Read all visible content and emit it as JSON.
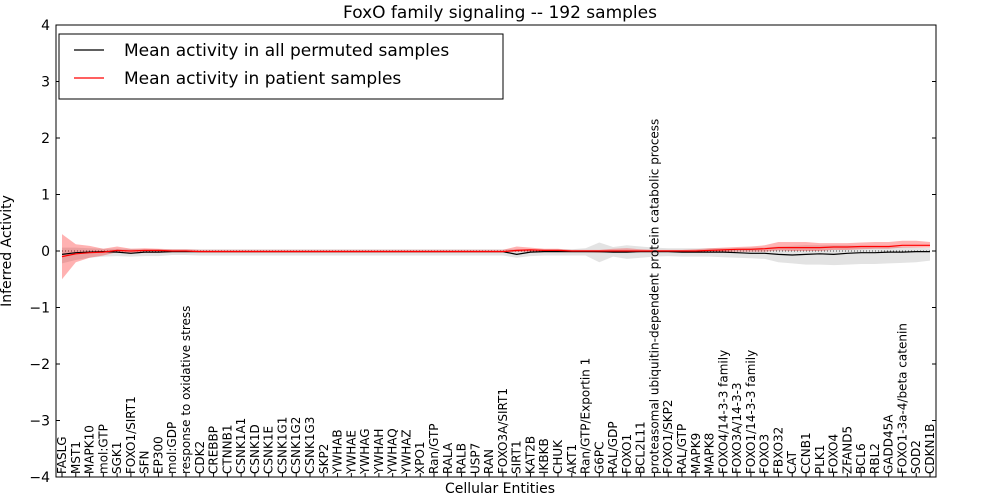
{
  "chart_data": {
    "type": "line",
    "title": "FoxO family signaling -- 192 samples",
    "xlabel": "Cellular Entities",
    "ylabel": "Inferred Activity",
    "ylim": [
      -4,
      4
    ],
    "yticks": [
      -4,
      -3,
      -2,
      -1,
      0,
      1,
      2,
      3,
      4
    ],
    "ytick_labels": [
      "−4",
      "−3",
      "−2",
      "−1",
      "0",
      "1",
      "2",
      "3",
      "4"
    ],
    "legend": {
      "location": "top-left",
      "entries": [
        {
          "label": "Mean activity in all permuted samples",
          "color": "#000000"
        },
        {
          "label": "Mean activity in patient samples",
          "color": "#ff0000"
        }
      ]
    },
    "categories": [
      "FASLG",
      "MST1",
      "MAPK10",
      "mol:GTP",
      "SGK1",
      "FOXO1/SIRT1",
      "SFN",
      "EP300",
      "mol:GDP",
      "response to oxidative stress",
      "CDK2",
      "CREBBP",
      "CTNNB1",
      "CSNK1A1",
      "CSNK1D",
      "CSNK1E",
      "CSNK1G1",
      "CSNK1G2",
      "CSNK1G3",
      "SKP2",
      "YWHAB",
      "YWHAE",
      "YWHAG",
      "YWHAH",
      "YWHAQ",
      "YWHAZ",
      "XPO1",
      "Ran/GTP",
      "RALA",
      "RALB",
      "USP7",
      "RAN",
      "FOXO3A/SIRT1",
      "SIRT1",
      "KAT2B",
      "IKBKB",
      "CHUK",
      "AKT1",
      "Ran/GTP/Exportin 1",
      "G6PC",
      "RAL/GDP",
      "FOXO1",
      "BCL2L11",
      "proteasomal ubiquitin-dependent protein catabolic process",
      "FOXO1/SKP2",
      "RAL/GTP",
      "MAPK9",
      "MAPK8",
      "FOXO4/14-3-3 family",
      "FOXO3A/14-3-3",
      "FOXO1/14-3-3 family",
      "FOXO3",
      "FBXO32",
      "CAT",
      "CCNB1",
      "PLK1",
      "FOXO4",
      "ZFAND5",
      "BCL6",
      "RBL2",
      "GADD45A",
      "FOXO1-3a-4/beta catenin",
      "SOD2",
      "CDKN1B"
    ],
    "series": [
      {
        "name": "Mean activity in all permuted samples",
        "color": "#000000",
        "values": [
          -0.06,
          -0.03,
          -0.02,
          -0.01,
          -0.02,
          -0.04,
          -0.02,
          -0.02,
          -0.01,
          -0.01,
          -0.01,
          -0.01,
          -0.01,
          -0.01,
          -0.01,
          -0.01,
          -0.01,
          -0.01,
          -0.01,
          -0.01,
          -0.01,
          -0.01,
          -0.01,
          -0.01,
          -0.01,
          -0.01,
          -0.01,
          -0.01,
          -0.01,
          -0.01,
          -0.01,
          -0.01,
          -0.01,
          -0.06,
          -0.02,
          -0.01,
          -0.01,
          -0.01,
          -0.01,
          -0.01,
          -0.02,
          -0.02,
          -0.01,
          -0.01,
          -0.01,
          -0.02,
          -0.02,
          -0.02,
          -0.02,
          -0.03,
          -0.04,
          -0.04,
          -0.06,
          -0.07,
          -0.06,
          -0.05,
          -0.06,
          -0.04,
          -0.03,
          -0.03,
          -0.02,
          -0.02,
          -0.01,
          -0.01
        ],
        "band_low": [
          -0.22,
          -0.16,
          -0.12,
          -0.1,
          -0.09,
          -0.1,
          -0.09,
          -0.09,
          -0.07,
          -0.07,
          -0.08,
          -0.08,
          -0.08,
          -0.08,
          -0.08,
          -0.08,
          -0.08,
          -0.08,
          -0.08,
          -0.08,
          -0.08,
          -0.08,
          -0.08,
          -0.08,
          -0.08,
          -0.08,
          -0.08,
          -0.08,
          -0.08,
          -0.08,
          -0.08,
          -0.08,
          -0.08,
          -0.12,
          -0.09,
          -0.08,
          -0.08,
          -0.08,
          -0.08,
          -0.2,
          -0.1,
          -0.14,
          -0.12,
          -0.1,
          -0.09,
          -0.1,
          -0.1,
          -0.1,
          -0.11,
          -0.12,
          -0.13,
          -0.14,
          -0.2,
          -0.22,
          -0.24,
          -0.24,
          -0.25,
          -0.24,
          -0.23,
          -0.23,
          -0.22,
          -0.21,
          -0.2,
          -0.17
        ],
        "band_high": [
          0.06,
          0.06,
          0.05,
          0.04,
          0.04,
          0.04,
          0.03,
          0.03,
          0.03,
          0.03,
          0.03,
          0.03,
          0.03,
          0.03,
          0.03,
          0.03,
          0.03,
          0.03,
          0.03,
          0.03,
          0.03,
          0.03,
          0.03,
          0.03,
          0.03,
          0.03,
          0.03,
          0.03,
          0.03,
          0.03,
          0.03,
          0.03,
          0.03,
          0.03,
          0.03,
          0.03,
          0.03,
          0.03,
          0.05,
          0.15,
          0.07,
          0.1,
          0.08,
          0.06,
          0.05,
          0.05,
          0.05,
          0.05,
          0.05,
          0.05,
          0.06,
          0.06,
          0.08,
          0.09,
          0.1,
          0.1,
          0.1,
          0.1,
          0.09,
          0.09,
          0.08,
          0.07,
          0.06,
          0.05
        ]
      },
      {
        "name": "Mean activity in patient samples",
        "color": "#ff0000",
        "values": [
          -0.1,
          -0.05,
          -0.03,
          -0.02,
          0.01,
          0.0,
          0.01,
          0.01,
          0.0,
          0.0,
          -0.01,
          -0.01,
          -0.01,
          -0.01,
          -0.01,
          -0.01,
          -0.01,
          -0.01,
          -0.01,
          -0.01,
          -0.01,
          -0.01,
          -0.01,
          -0.01,
          -0.01,
          -0.01,
          -0.01,
          -0.01,
          -0.01,
          -0.01,
          -0.01,
          -0.01,
          -0.01,
          0.01,
          0.02,
          0.01,
          0.01,
          0.0,
          0.0,
          0.0,
          0.0,
          0.0,
          0.0,
          0.0,
          0.0,
          0.0,
          0.0,
          0.01,
          0.02,
          0.03,
          0.03,
          0.04,
          0.06,
          0.06,
          0.06,
          0.06,
          0.07,
          0.07,
          0.08,
          0.08,
          0.08,
          0.1,
          0.1,
          0.1
        ],
        "band_low": [
          -0.5,
          -0.2,
          -0.12,
          -0.08,
          -0.02,
          -0.05,
          -0.03,
          -0.03,
          -0.02,
          -0.02,
          -0.02,
          -0.02,
          -0.02,
          -0.02,
          -0.02,
          -0.02,
          -0.02,
          -0.02,
          -0.02,
          -0.02,
          -0.02,
          -0.02,
          -0.02,
          -0.02,
          -0.02,
          -0.02,
          -0.02,
          -0.02,
          -0.02,
          -0.02,
          -0.02,
          -0.02,
          -0.02,
          -0.02,
          -0.01,
          -0.01,
          -0.01,
          -0.02,
          -0.02,
          -0.03,
          -0.02,
          -0.02,
          -0.02,
          -0.02,
          -0.01,
          -0.01,
          -0.01,
          -0.01,
          -0.02,
          -0.01,
          -0.01,
          -0.01,
          0.01,
          0.0,
          0.0,
          0.0,
          0.02,
          0.02,
          0.03,
          0.04,
          0.04,
          0.06,
          0.06,
          0.06
        ],
        "band_high": [
          0.3,
          0.12,
          0.09,
          0.04,
          0.08,
          0.04,
          0.05,
          0.04,
          0.03,
          0.03,
          0.02,
          0.02,
          0.02,
          0.02,
          0.02,
          0.02,
          0.02,
          0.02,
          0.02,
          0.02,
          0.02,
          0.02,
          0.02,
          0.02,
          0.02,
          0.02,
          0.02,
          0.02,
          0.02,
          0.02,
          0.02,
          0.02,
          0.02,
          0.08,
          0.06,
          0.04,
          0.04,
          0.02,
          0.02,
          0.02,
          0.04,
          0.05,
          0.03,
          0.02,
          0.02,
          0.02,
          0.03,
          0.05,
          0.06,
          0.07,
          0.08,
          0.1,
          0.16,
          0.16,
          0.16,
          0.14,
          0.14,
          0.14,
          0.15,
          0.16,
          0.16,
          0.18,
          0.18,
          0.16
        ]
      }
    ]
  }
}
